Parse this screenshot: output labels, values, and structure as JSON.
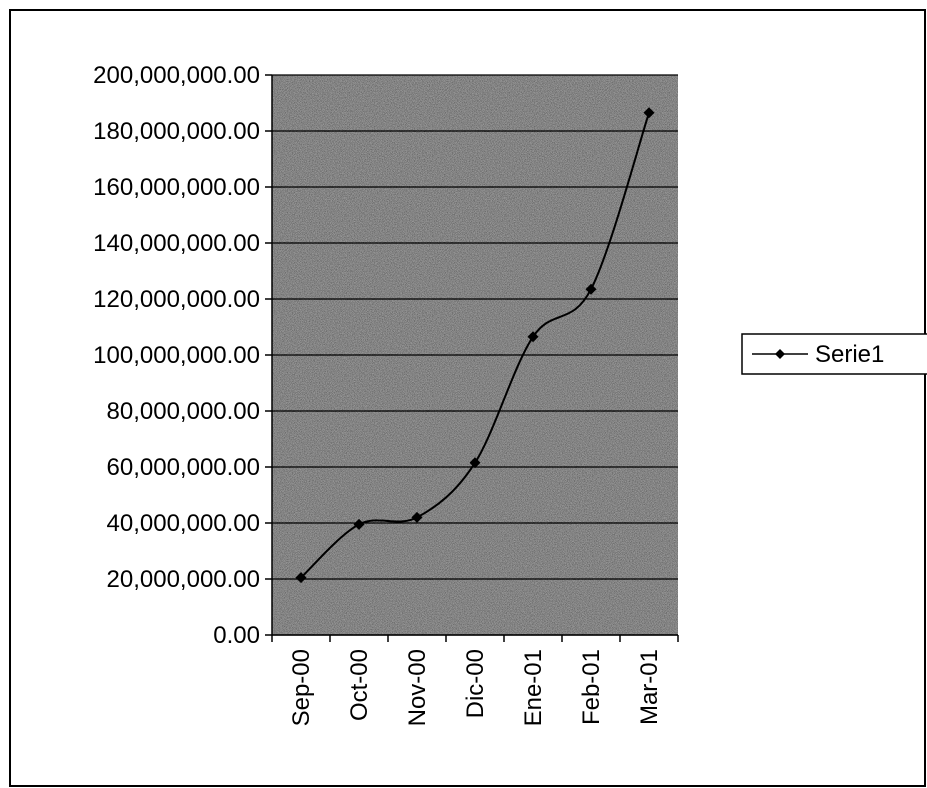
{
  "chart_data": {
    "type": "line",
    "title": "",
    "xlabel": "",
    "ylabel": "",
    "categories": [
      "Sep-00",
      "Oct-00",
      "Nov-00",
      "Dic-00",
      "Ene-01",
      "Feb-01",
      "Mar-01"
    ],
    "series": [
      {
        "name": "Serie1",
        "values": [
          20500000,
          39500000,
          42000000,
          61500000,
          106500000,
          123500000,
          186500000
        ],
        "color": "#000000",
        "marker": "diamond"
      }
    ],
    "ylim": [
      0,
      200000000
    ],
    "yticks": [
      0,
      20000000,
      40000000,
      60000000,
      80000000,
      100000000,
      120000000,
      140000000,
      160000000,
      180000000,
      200000000
    ],
    "ytick_labels": [
      "0.00",
      "20,000,000.00",
      "40,000,000.00",
      "60,000,000.00",
      "80,000,000.00",
      "100,000,000.00",
      "120,000,000.00",
      "140,000,000.00",
      "160,000,000.00",
      "180,000,000.00",
      "200,000,000.00"
    ],
    "grid": true,
    "legend_position": "right",
    "plot_background": "speckled-gray",
    "line_smoothing": true
  }
}
